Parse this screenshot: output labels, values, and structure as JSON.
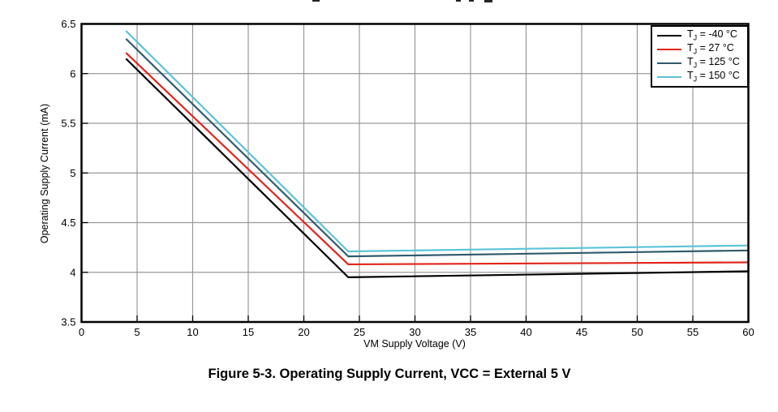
{
  "figure": {
    "caption": "Figure 5-3. Operating Supply Current, VCC = External 5 V"
  },
  "chart_data": {
    "type": "line",
    "title": "",
    "xlabel": "VM Supply Voltage (V)",
    "ylabel": "Operating Supply Current (mA)",
    "xlim": [
      0,
      60
    ],
    "ylim": [
      3.5,
      6.5
    ],
    "xticks": [
      0,
      5,
      10,
      15,
      20,
      25,
      30,
      35,
      40,
      45,
      50,
      55,
      60
    ],
    "yticks": [
      3.5,
      4,
      4.5,
      5,
      5.5,
      6,
      6.5
    ],
    "grid": true,
    "legend_position": "top-right",
    "series": [
      {
        "name": "TJ = -40 °C",
        "label_sym": "T",
        "label_sub": "J",
        "label_rest": " = -40 °C",
        "color": "#000000",
        "points": [
          [
            4,
            6.15
          ],
          [
            24,
            3.95
          ],
          [
            60,
            4.01
          ]
        ]
      },
      {
        "name": "TJ = 27 °C",
        "label_sym": "T",
        "label_sub": "J",
        "label_rest": " = 27 °C",
        "color": "#e1251b",
        "points": [
          [
            4,
            6.21
          ],
          [
            24,
            4.08
          ],
          [
            60,
            4.1
          ]
        ]
      },
      {
        "name": "TJ = 125 °C",
        "label_sym": "T",
        "label_sub": "J",
        "label_rest": " = 125 °C",
        "color": "#305a6c",
        "points": [
          [
            4,
            6.35
          ],
          [
            24,
            4.16
          ],
          [
            60,
            4.22
          ]
        ]
      },
      {
        "name": "TJ = 150 °C",
        "label_sym": "T",
        "label_sub": "J",
        "label_rest": " = 150 °C",
        "color": "#5cc3d8",
        "points": [
          [
            4,
            6.43
          ],
          [
            24,
            4.21
          ],
          [
            60,
            4.27
          ]
        ]
      }
    ]
  },
  "colors": {
    "background": "#ffffff",
    "grid": "#999999",
    "axis": "#000000",
    "tick_label": "#000000"
  }
}
